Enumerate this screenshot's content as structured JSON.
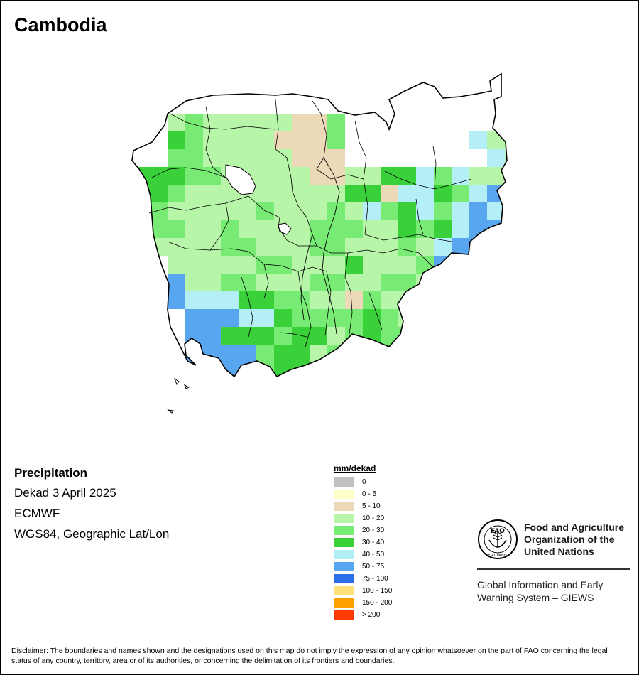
{
  "title": "Cambodia",
  "info": {
    "variable": "Precipitation",
    "period": "Dekad 3 April 2025",
    "source": "ECMWF",
    "projection": "WGS84, Geographic Lat/Lon"
  },
  "legend": {
    "unit": "mm/dekad",
    "classes": [
      {
        "label": "0",
        "color": "#c0c0c0"
      },
      {
        "label": "0 - 5",
        "color": "#ffffc8"
      },
      {
        "label": "5 - 10",
        "color": "#ecd9b8"
      },
      {
        "label": "10 - 20",
        "color": "#b7f5a8"
      },
      {
        "label": "20 - 30",
        "color": "#78eb74"
      },
      {
        "label": "30 - 40",
        "color": "#3ad03a"
      },
      {
        "label": "40 - 50",
        "color": "#b4eef6"
      },
      {
        "label": "50 - 75",
        "color": "#58a6f0"
      },
      {
        "label": "75 - 100",
        "color": "#2a6ee8"
      },
      {
        "label": "100 - 150",
        "color": "#ffe27a"
      },
      {
        "label": "150 - 200",
        "color": "#ffa200"
      },
      {
        "label": "> 200",
        "color": "#ff3a00"
      }
    ]
  },
  "logo": {
    "emblem_icon": "fao-emblem-icon",
    "emblem_text": "FAO",
    "motto": "FIAT PANIS",
    "org_name": "Food and Agriculture Organization of the United Nations",
    "system_name": "Global Information and Early Warning System – GIEWS"
  },
  "disclaimer": "Disclaimer: The boundaries and names shown and the designations used on this map do not imply the expression of any opinion whatsoever on the part of FAO concerning the legal status of any country, territory, area or of its authorities, or concerning the delimitation of its frontiers and boundaries."
}
